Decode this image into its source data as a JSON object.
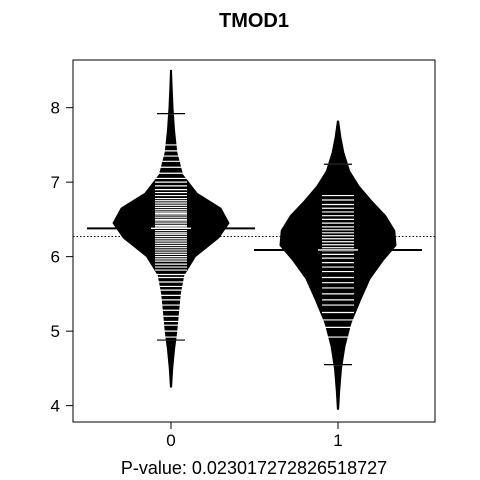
{
  "chart_data": {
    "type": "beanplot",
    "title": "TMOD1",
    "xlabel": "P-value: 0.023017272826518727",
    "ylabel": "",
    "categories": [
      "0",
      "1"
    ],
    "ylim": [
      3.78,
      8.64
    ],
    "yticks": [
      "4",
      "5",
      "6",
      "7",
      "8"
    ],
    "overall_mean": 6.27,
    "legend": "none",
    "grid": false,
    "beans": [
      {
        "name": "0",
        "mean": 6.38,
        "min": 4.25,
        "max": 8.5,
        "outlier_lines": [
          7.92,
          4.88
        ],
        "density": [
          [
            4.25,
            0.01
          ],
          [
            4.5,
            0.03
          ],
          [
            4.75,
            0.06
          ],
          [
            5.0,
            0.1
          ],
          [
            5.25,
            0.13
          ],
          [
            5.5,
            0.16
          ],
          [
            5.75,
            0.22
          ],
          [
            6.0,
            0.42
          ],
          [
            6.25,
            0.82
          ],
          [
            6.45,
            1.0
          ],
          [
            6.65,
            0.86
          ],
          [
            6.85,
            0.45
          ],
          [
            7.1,
            0.2
          ],
          [
            7.4,
            0.1
          ],
          [
            7.7,
            0.06
          ],
          [
            8.0,
            0.035
          ],
          [
            8.25,
            0.02
          ],
          [
            8.5,
            0.008
          ]
        ],
        "observations": [
          4.88,
          4.92,
          5.0,
          5.08,
          5.13,
          5.2,
          5.28,
          5.35,
          5.42,
          5.48,
          5.55,
          5.6,
          5.66,
          5.72,
          5.76,
          5.82,
          5.86,
          5.9,
          5.94,
          5.97,
          6.0,
          6.03,
          6.06,
          6.09,
          6.12,
          6.15,
          6.18,
          6.21,
          6.24,
          6.27,
          6.3,
          6.32,
          6.35,
          6.38,
          6.4,
          6.42,
          6.45,
          6.48,
          6.5,
          6.53,
          6.56,
          6.58,
          6.6,
          6.63,
          6.66,
          6.69,
          6.72,
          6.75,
          6.78,
          6.82,
          6.86,
          6.9,
          6.95,
          7.0,
          7.05,
          7.12,
          7.2,
          7.28,
          7.35,
          7.42,
          7.5,
          7.92
        ]
      },
      {
        "name": "1",
        "mean": 6.09,
        "min": 3.95,
        "max": 7.82,
        "outlier_lines": [
          7.24,
          4.55
        ],
        "density": [
          [
            3.95,
            0.01
          ],
          [
            4.2,
            0.03
          ],
          [
            4.5,
            0.06
          ],
          [
            4.8,
            0.12
          ],
          [
            5.1,
            0.22
          ],
          [
            5.4,
            0.38
          ],
          [
            5.7,
            0.55
          ],
          [
            5.95,
            0.78
          ],
          [
            6.15,
            1.0
          ],
          [
            6.35,
            0.98
          ],
          [
            6.55,
            0.82
          ],
          [
            6.75,
            0.58
          ],
          [
            6.95,
            0.36
          ],
          [
            7.15,
            0.2
          ],
          [
            7.4,
            0.1
          ],
          [
            7.6,
            0.05
          ],
          [
            7.82,
            0.01
          ]
        ],
        "observations": [
          4.55,
          4.92,
          5.05,
          5.15,
          5.25,
          5.35,
          5.42,
          5.5,
          5.58,
          5.65,
          5.72,
          5.8,
          5.86,
          5.92,
          5.98,
          6.03,
          6.08,
          6.12,
          6.16,
          6.2,
          6.24,
          6.28,
          6.32,
          6.36,
          6.4,
          6.45,
          6.5,
          6.55,
          6.6,
          6.65,
          6.7,
          6.76,
          6.82,
          7.24
        ]
      }
    ]
  }
}
